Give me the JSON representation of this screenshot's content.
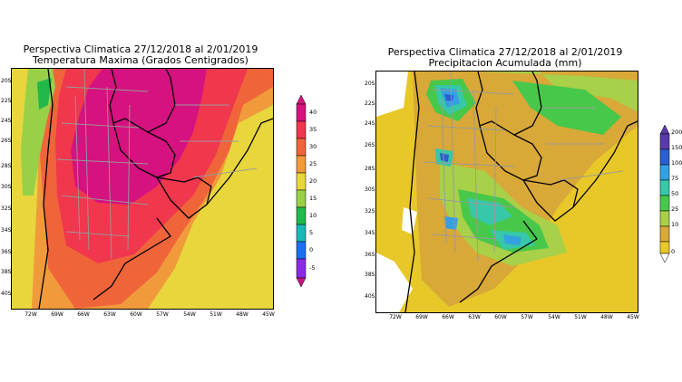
{
  "left_panel": {
    "title_line1": "Perspectiva Climatica 27/12/2018 al 2/01/2019",
    "title_line2": "Temperatura Maxima (Grados Centigrados)",
    "lat_ticks": [
      "20S",
      "22S",
      "24S",
      "26S",
      "28S",
      "30S",
      "32S",
      "34S",
      "36S",
      "38S",
      "40S"
    ],
    "lon_ticks": [
      "72W",
      "69W",
      "66W",
      "63W",
      "60W",
      "57W",
      "54W",
      "51W",
      "48W",
      "45W"
    ],
    "colorbar": {
      "labels": [
        "40",
        "35",
        "30",
        "25",
        "20",
        "15",
        "10",
        "5",
        "0",
        "-5"
      ],
      "colors": [
        "#d5127f",
        "#f0374d",
        "#f0643a",
        "#f09a3c",
        "#e8d63c",
        "#98d048",
        "#22b84a",
        "#1bb8b8",
        "#1e6ff0",
        "#8a2be2",
        "#c71585"
      ]
    }
  },
  "right_panel": {
    "title_line1": "Perspectiva Climatica 27/12/2018 al 2/01/2019",
    "title_line2": "Precipitacion Acumulada (mm)",
    "lat_ticks": [
      "20S",
      "22S",
      "24S",
      "26S",
      "28S",
      "30S",
      "32S",
      "34S",
      "36S",
      "38S",
      "40S"
    ],
    "lon_ticks": [
      "72W",
      "69W",
      "66W",
      "63W",
      "60W",
      "57W",
      "54W",
      "51W",
      "48W",
      "45W"
    ],
    "colorbar": {
      "labels": [
        "200",
        "150",
        "100",
        "75",
        "50",
        "25",
        "10",
        "0"
      ],
      "colors": [
        "#5a3aa8",
        "#2a5fd0",
        "#33a0e0",
        "#36c8a8",
        "#48c84a",
        "#a8d048",
        "#d8a838",
        "#e8c828"
      ]
    }
  }
}
